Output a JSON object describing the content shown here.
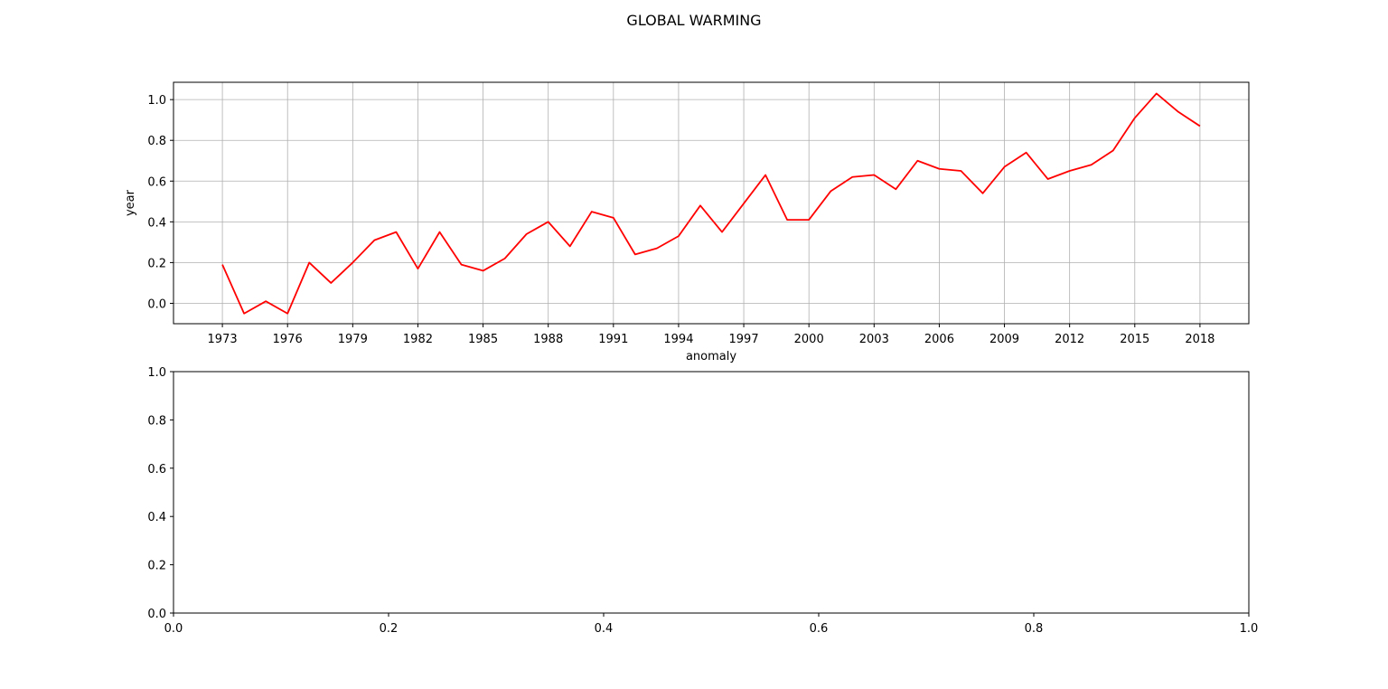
{
  "suptitle": "GLOBAL WARMING",
  "colors": {
    "series": "#ff0000",
    "grid": "#b0b0b0",
    "axes": "#000000",
    "background": "#ffffff"
  },
  "chart_data": [
    {
      "type": "line",
      "title": "",
      "xlabel": "anomaly",
      "ylabel": "year",
      "grid": true,
      "xlim": [
        1970.75,
        2020.25
      ],
      "ylim": [
        -0.1,
        1.085
      ],
      "xticks": [
        1973,
        1976,
        1979,
        1982,
        1985,
        1988,
        1991,
        1994,
        1997,
        2000,
        2003,
        2006,
        2009,
        2012,
        2015,
        2018
      ],
      "xtick_labels": [
        "1973",
        "1976",
        "1979",
        "1982",
        "1985",
        "1988",
        "1991",
        "1994",
        "1997",
        "2000",
        "2003",
        "2006",
        "2009",
        "2012",
        "2015",
        "2018"
      ],
      "yticks": [
        0.0,
        0.2,
        0.4,
        0.6,
        0.8,
        1.0
      ],
      "ytick_labels": [
        "0.0",
        "0.2",
        "0.4",
        "0.6",
        "0.8",
        "1.0"
      ],
      "series": [
        {
          "color": "#ff0000",
          "x": [
            1973,
            1974,
            1975,
            1976,
            1977,
            1978,
            1979,
            1980,
            1981,
            1982,
            1983,
            1984,
            1985,
            1986,
            1987,
            1988,
            1989,
            1990,
            1991,
            1992,
            1993,
            1994,
            1995,
            1996,
            1997,
            1998,
            1999,
            2000,
            2001,
            2002,
            2003,
            2004,
            2005,
            2006,
            2007,
            2008,
            2009,
            2010,
            2011,
            2012,
            2013,
            2014,
            2015,
            2016,
            2017,
            2018
          ],
          "y": [
            0.19,
            -0.05,
            0.01,
            -0.05,
            0.2,
            0.1,
            0.2,
            0.31,
            0.35,
            0.17,
            0.35,
            0.19,
            0.16,
            0.22,
            0.34,
            0.4,
            0.28,
            0.45,
            0.42,
            0.24,
            0.27,
            0.33,
            0.48,
            0.35,
            0.49,
            0.63,
            0.41,
            0.41,
            0.55,
            0.62,
            0.63,
            0.56,
            0.7,
            0.66,
            0.65,
            0.54,
            0.67,
            0.74,
            0.61,
            0.65,
            0.68,
            0.75,
            0.91,
            1.03,
            0.94,
            0.87
          ]
        }
      ]
    },
    {
      "type": "line",
      "title": "",
      "xlabel": "",
      "ylabel": "",
      "grid": false,
      "xlim": [
        0,
        1
      ],
      "ylim": [
        0,
        1
      ],
      "xticks": [
        0.0,
        0.2,
        0.4,
        0.6,
        0.8,
        1.0
      ],
      "xtick_labels": [
        "0.0",
        "0.2",
        "0.4",
        "0.6",
        "0.8",
        "1.0"
      ],
      "yticks": [
        0.0,
        0.2,
        0.4,
        0.6,
        0.8,
        1.0
      ],
      "ytick_labels": [
        "0.0",
        "0.2",
        "0.4",
        "0.6",
        "0.8",
        "1.0"
      ],
      "series": []
    }
  ]
}
